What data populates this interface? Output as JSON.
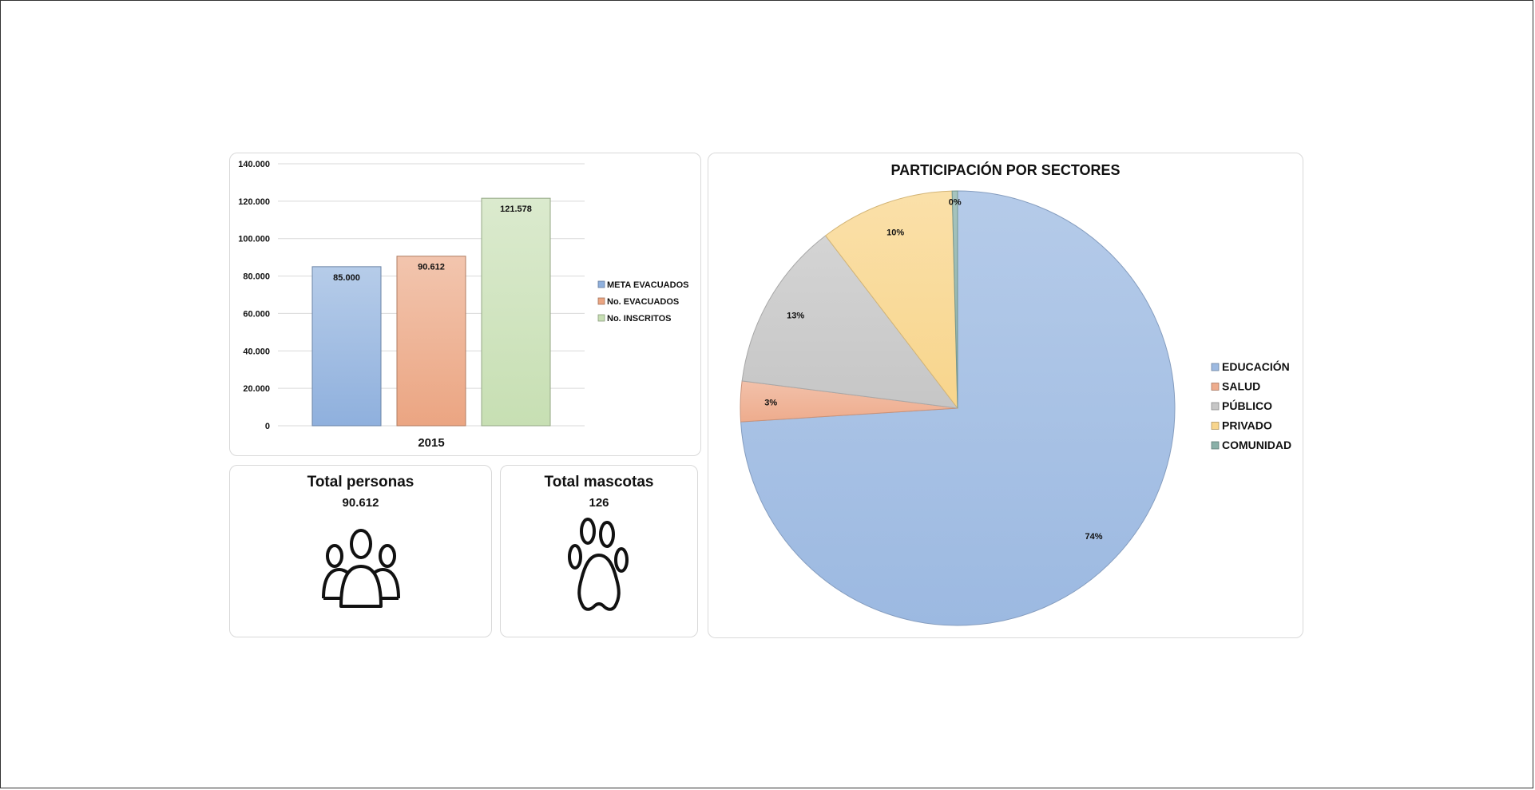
{
  "chart_data": [
    {
      "type": "bar",
      "categories": [
        "2015"
      ],
      "series": [
        {
          "name": "META EVACUADOS",
          "values": [
            85000
          ],
          "label": "85.000",
          "color": "#8fb0dd"
        },
        {
          "name": "No. EVACUADOS",
          "values": [
            90612
          ],
          "label": "90.612",
          "color": "#eba582"
        },
        {
          "name": "No. INSCRITOS",
          "values": [
            121578
          ],
          "label": "121.578",
          "color": "#c7dfb3"
        }
      ],
      "ylim": [
        0,
        140000
      ],
      "yticks": [
        0,
        20000,
        40000,
        60000,
        80000,
        100000,
        120000,
        140000
      ],
      "ytick_labels": [
        "0",
        "20.000",
        "40.000",
        "60.000",
        "80.000",
        "100.000",
        "120.000",
        "140.000"
      ],
      "grid": true,
      "legend": "right"
    },
    {
      "type": "pie",
      "title": "PARTICIPACIÓN POR SECTORES",
      "slices": [
        {
          "name": "EDUCACIÓN",
          "value": 74,
          "label": "74%",
          "color": "#9cb9e1"
        },
        {
          "name": "SALUD",
          "value": 3,
          "label": "3%",
          "color": "#eeac8d"
        },
        {
          "name": "PÚBLICO",
          "value": 12.6,
          "label": "13%",
          "color": "#c6c6c6"
        },
        {
          "name": "PRIVADO",
          "value": 10,
          "label": "10%",
          "color": "#f8d58c"
        },
        {
          "name": "COMUNIDAD",
          "value": 0.4,
          "label": "0%",
          "color": "#8ab0a8"
        }
      ],
      "legend": "right"
    }
  ],
  "kpis": {
    "persons": {
      "title": "Total personas",
      "value": "90.612",
      "icon": "people-group-icon"
    },
    "pets": {
      "title": "Total mascotas",
      "value": "126",
      "icon": "paw-icon"
    }
  }
}
